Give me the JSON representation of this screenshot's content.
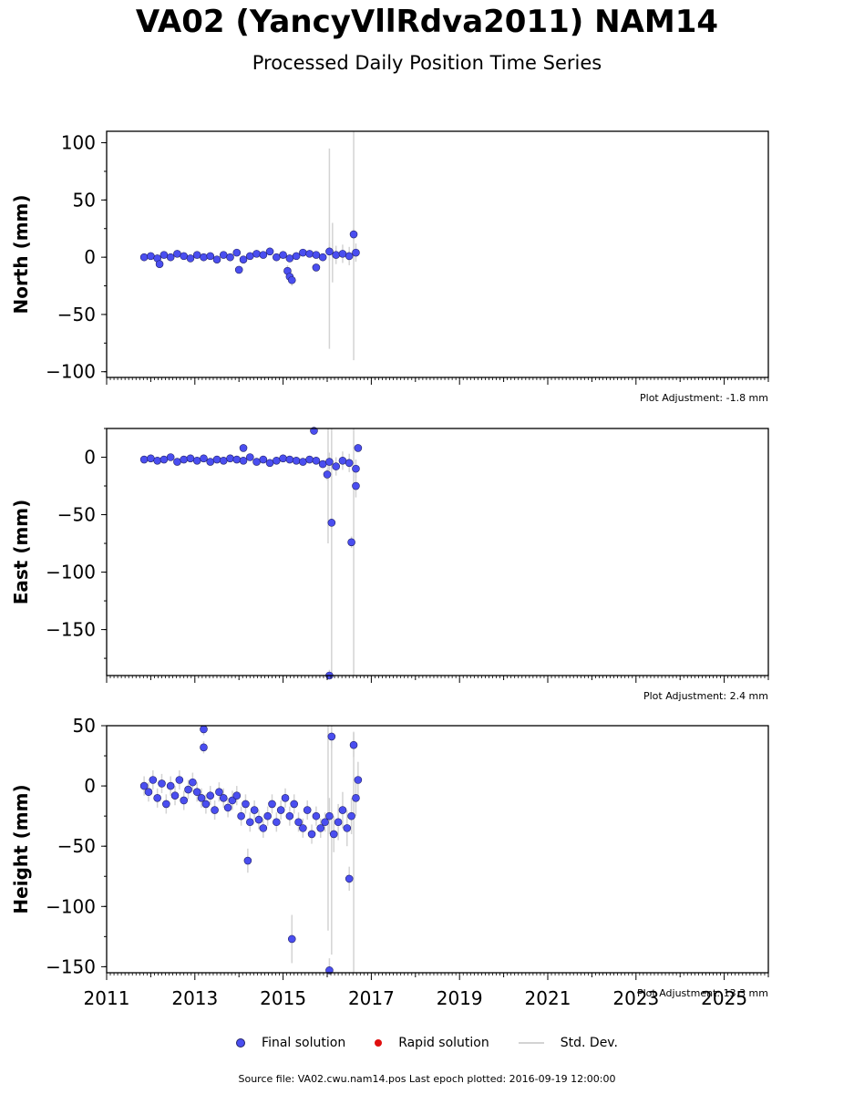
{
  "title": "VA02 (YancyVllRdva2011) NAM14",
  "subtitle": "Processed Daily Position Time Series",
  "legend": {
    "final": "Final solution",
    "rapid": "Rapid solution",
    "std": "Std. Dev."
  },
  "source_text": "Source file: VA02.cwu.nam14.pos  Last epoch plotted: 2016-09-19 12:00:00",
  "colors": {
    "final": "#4a4ef0",
    "final_edge": "#222266",
    "rapid": "#e01010",
    "std": "#d3d3d3"
  },
  "chart_data": {
    "type": "scatter",
    "x_axis": {
      "label": "",
      "xlim": [
        2011,
        2026
      ],
      "ticks": [
        "2011",
        "2013",
        "2015",
        "2017",
        "2019",
        "2021",
        "2023",
        "2025"
      ]
    },
    "panels": [
      {
        "ylabel": "North (mm)",
        "ylim": [
          -105,
          110
        ],
        "yticks": [
          "100",
          "50",
          "0",
          "−50",
          "−100"
        ],
        "adjustment": "Plot Adjustment: -1.8 mm",
        "data": {
          "x": [
            2011.85,
            2012.0,
            2012.15,
            2012.3,
            2012.45,
            2012.6,
            2012.75,
            2012.9,
            2013.05,
            2013.2,
            2013.35,
            2013.5,
            2013.65,
            2013.8,
            2013.95,
            2014.1,
            2014.25,
            2014.4,
            2014.55,
            2014.7,
            2014.85,
            2015.0,
            2015.15,
            2015.3,
            2015.45,
            2015.6,
            2015.75,
            2015.9,
            2016.05,
            2016.2,
            2016.35,
            2016.5,
            2016.65,
            2012.2,
            2014.0,
            2015.1,
            2015.15,
            2015.2,
            2015.75,
            2016.6
          ],
          "y": [
            0,
            1,
            -1,
            2,
            0,
            3,
            1,
            -1,
            2,
            0,
            1,
            -2,
            2,
            0,
            4,
            -2,
            1,
            3,
            2,
            5,
            0,
            2,
            -1,
            1,
            4,
            3,
            2,
            0,
            5,
            2,
            3,
            1,
            4,
            -6,
            -11,
            -12,
            -17,
            -20,
            -9,
            20
          ],
          "err": [
            3,
            3,
            3,
            3,
            3,
            3,
            3,
            3,
            3,
            3,
            3,
            3,
            3,
            3,
            3,
            3,
            3,
            3,
            3,
            3,
            3,
            3,
            3,
            3,
            3,
            3,
            3,
            3,
            8,
            8,
            8,
            8,
            8,
            3,
            3,
            5,
            5,
            5,
            3,
            5
          ]
        },
        "extra_errorbars": [
          {
            "x": 2016.05,
            "lo": -80,
            "hi": 95
          },
          {
            "x": 2016.12,
            "lo": -22,
            "hi": 30
          },
          {
            "x": 2016.6,
            "lo": -90,
            "hi": 110
          }
        ]
      },
      {
        "ylabel": "East (mm)",
        "ylim": [
          -190,
          25
        ],
        "yticks": [
          "0",
          "−50",
          "−100",
          "−150"
        ],
        "adjustment": "Plot Adjustment: 2.4 mm",
        "data": {
          "x": [
            2011.85,
            2012.0,
            2012.15,
            2012.3,
            2012.45,
            2012.6,
            2012.75,
            2012.9,
            2013.05,
            2013.2,
            2013.35,
            2013.5,
            2013.65,
            2013.8,
            2013.95,
            2014.1,
            2014.25,
            2014.4,
            2014.55,
            2014.7,
            2014.85,
            2015.0,
            2015.15,
            2015.3,
            2015.45,
            2015.6,
            2015.75,
            2015.9,
            2016.05,
            2016.2,
            2016.35,
            2016.5,
            2016.65,
            2014.1,
            2015.7,
            2016.1,
            2016.55,
            2016.65,
            2016.7,
            2016.0,
            2016.05
          ],
          "y": [
            -2,
            -1,
            -3,
            -2,
            0,
            -4,
            -2,
            -1,
            -3,
            -1,
            -4,
            -2,
            -3,
            -1,
            -2,
            -3,
            0,
            -4,
            -2,
            -5,
            -3,
            -1,
            -2,
            -3,
            -4,
            -2,
            -3,
            -6,
            -4,
            -8,
            -3,
            -5,
            -10,
            8,
            23,
            -57,
            -74,
            -25,
            8,
            -15,
            -190
          ],
          "err": [
            3,
            3,
            3,
            3,
            3,
            3,
            3,
            3,
            3,
            3,
            3,
            3,
            3,
            3,
            3,
            3,
            3,
            3,
            3,
            3,
            3,
            3,
            3,
            3,
            3,
            3,
            3,
            3,
            8,
            8,
            8,
            8,
            8,
            3,
            3,
            5,
            5,
            10,
            3,
            5,
            5
          ]
        },
        "extra_errorbars": [
          {
            "x": 2016.02,
            "lo": -75,
            "hi": 25
          },
          {
            "x": 2016.1,
            "lo": -190,
            "hi": 25
          },
          {
            "x": 2016.6,
            "lo": -190,
            "hi": 25
          }
        ]
      },
      {
        "ylabel": "Height (mm)",
        "ylim": [
          -155,
          50
        ],
        "yticks": [
          "50",
          "0",
          "−50",
          "−100",
          "−150"
        ],
        "adjustment": "Plot Adjustment: 13.3 mm",
        "data": {
          "x": [
            2011.85,
            2011.95,
            2012.05,
            2012.15,
            2012.25,
            2012.35,
            2012.45,
            2012.55,
            2012.65,
            2012.75,
            2012.85,
            2012.95,
            2013.05,
            2013.15,
            2013.25,
            2013.35,
            2013.45,
            2013.55,
            2013.65,
            2013.75,
            2013.85,
            2013.95,
            2014.05,
            2014.15,
            2014.25,
            2014.35,
            2014.45,
            2014.55,
            2014.65,
            2014.75,
            2014.85,
            2014.95,
            2015.05,
            2015.15,
            2015.25,
            2015.35,
            2015.45,
            2015.55,
            2015.65,
            2015.75,
            2015.85,
            2015.95,
            2016.05,
            2016.15,
            2016.25,
            2016.35,
            2016.45,
            2016.55,
            2016.65,
            2016.7,
            2013.2,
            2013.2,
            2015.2,
            2016.05,
            2016.1,
            2014.2,
            2016.6,
            2016.5
          ],
          "y": [
            0,
            -5,
            5,
            -10,
            2,
            -15,
            0,
            -8,
            5,
            -12,
            -3,
            3,
            -5,
            -10,
            -15,
            -8,
            -20,
            -5,
            -10,
            -18,
            -12,
            -8,
            -25,
            -15,
            -30,
            -20,
            -28,
            -35,
            -25,
            -15,
            -30,
            -20,
            -10,
            -25,
            -15,
            -30,
            -35,
            -20,
            -40,
            -25,
            -35,
            -30,
            -25,
            -40,
            -30,
            -20,
            -35,
            -25,
            -10,
            5,
            47,
            32,
            -127,
            -153,
            41,
            -62,
            34,
            -77
          ],
          "err": [
            8,
            8,
            8,
            8,
            8,
            8,
            8,
            8,
            8,
            8,
            8,
            8,
            8,
            8,
            8,
            8,
            8,
            8,
            8,
            8,
            8,
            8,
            8,
            8,
            8,
            8,
            8,
            8,
            8,
            8,
            8,
            8,
            8,
            8,
            8,
            8,
            8,
            8,
            8,
            8,
            8,
            8,
            15,
            15,
            15,
            15,
            15,
            15,
            15,
            15,
            5,
            5,
            20,
            10,
            10,
            10,
            10,
            10
          ]
        },
        "extra_errorbars": [
          {
            "x": 2016.02,
            "lo": -120,
            "hi": 50
          },
          {
            "x": 2016.1,
            "lo": -140,
            "hi": 40
          },
          {
            "x": 2016.6,
            "lo": -155,
            "hi": 45
          }
        ]
      }
    ]
  }
}
